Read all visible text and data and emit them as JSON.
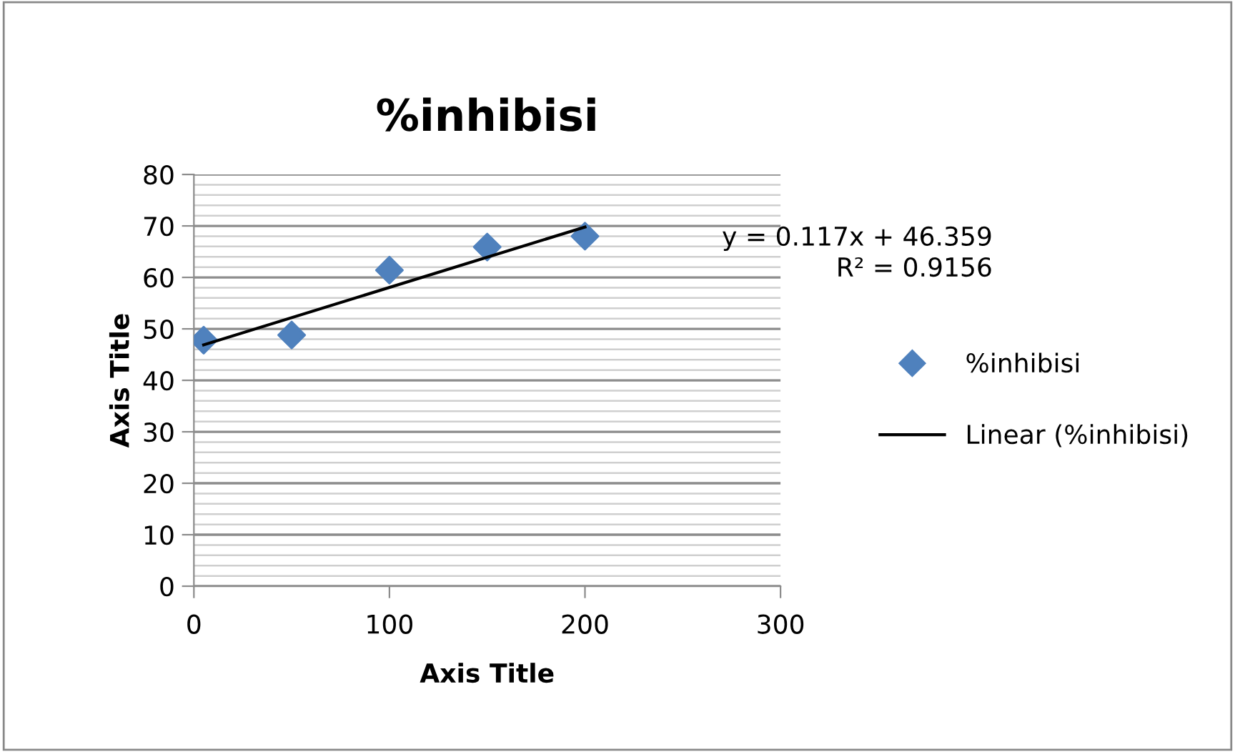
{
  "chart_data": {
    "type": "scatter",
    "title": "%inhibisi",
    "xlabel": "Axis Title",
    "ylabel": "Axis Title",
    "x": [
      5,
      50,
      100,
      150,
      200
    ],
    "series": [
      {
        "name": "%inhibisi",
        "color": "#4f81bd",
        "marker": "diamond",
        "values": [
          47.8,
          48.8,
          61.4,
          65.9,
          68.0
        ]
      },
      {
        "name": "Linear (%inhibisi)",
        "type": "line",
        "color": "#000000",
        "marker": "none",
        "line_style": "solid",
        "x": [
          5,
          200
        ],
        "values": [
          46.9,
          69.8
        ]
      }
    ],
    "annotations": [
      "y = 0.117x + 46.359\nR² = 0.9156"
    ],
    "xlim": [
      0,
      300
    ],
    "xticks": [
      0,
      100,
      200,
      300
    ],
    "ylim": [
      0,
      80
    ],
    "yticks": [
      0,
      10,
      20,
      30,
      40,
      50,
      60,
      70,
      80
    ],
    "grid": "y",
    "legend": "right"
  }
}
